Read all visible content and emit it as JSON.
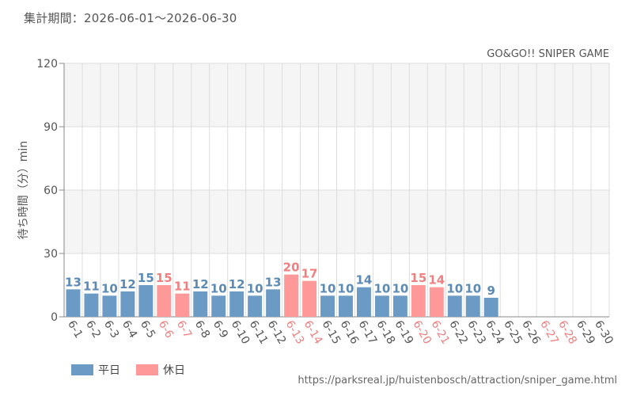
{
  "header": {
    "period": "集計期間：2026-06-01〜2026-06-30",
    "attraction": "GO&GO!! SNIPER GAME"
  },
  "footer": {
    "source_url": "https://parksreal.jp/huistenbosch/attraction/sniper_game.html"
  },
  "colors": {
    "weekday": "#6b9ac4",
    "holiday": "#ff9999",
    "weekday_label": "#5b8ab5",
    "holiday_label": "#f07f7f",
    "band_light": "#f5f5f5",
    "band_white": "#ffffff",
    "grid": "#dddddd",
    "axis_text": "#555555"
  },
  "chart_data": {
    "type": "bar",
    "title": "",
    "xlabel": "",
    "ylabel": "待ち時間（分）min",
    "ylim": [
      0,
      120
    ],
    "yticks": [
      0,
      30,
      60,
      90,
      120
    ],
    "grid": true,
    "legend_position": "bottom-left",
    "categories": [
      "6-1",
      "6-2",
      "6-3",
      "6-4",
      "6-5",
      "6-6",
      "6-7",
      "6-8",
      "6-9",
      "6-10",
      "6-11",
      "6-12",
      "6-13",
      "6-14",
      "6-15",
      "6-16",
      "6-17",
      "6-18",
      "6-19",
      "6-20",
      "6-21",
      "6-22",
      "6-23",
      "6-24",
      "6-25",
      "6-26",
      "6-27",
      "6-28",
      "6-29",
      "6-30"
    ],
    "values": [
      13,
      11,
      10,
      12,
      15,
      15,
      11,
      12,
      10,
      12,
      10,
      13,
      20,
      17,
      10,
      10,
      14,
      10,
      10,
      15,
      14,
      10,
      10,
      9,
      null,
      null,
      null,
      null,
      null,
      null
    ],
    "day_type": [
      "weekday",
      "weekday",
      "weekday",
      "weekday",
      "weekday",
      "holiday",
      "holiday",
      "weekday",
      "weekday",
      "weekday",
      "weekday",
      "weekday",
      "holiday",
      "holiday",
      "weekday",
      "weekday",
      "weekday",
      "weekday",
      "weekday",
      "holiday",
      "holiday",
      "weekday",
      "weekday",
      "weekday",
      "weekday",
      "weekday",
      "holiday",
      "holiday",
      "weekday",
      "weekday"
    ],
    "legend": [
      {
        "key": "weekday",
        "label": "平日"
      },
      {
        "key": "holiday",
        "label": "休日"
      }
    ]
  }
}
